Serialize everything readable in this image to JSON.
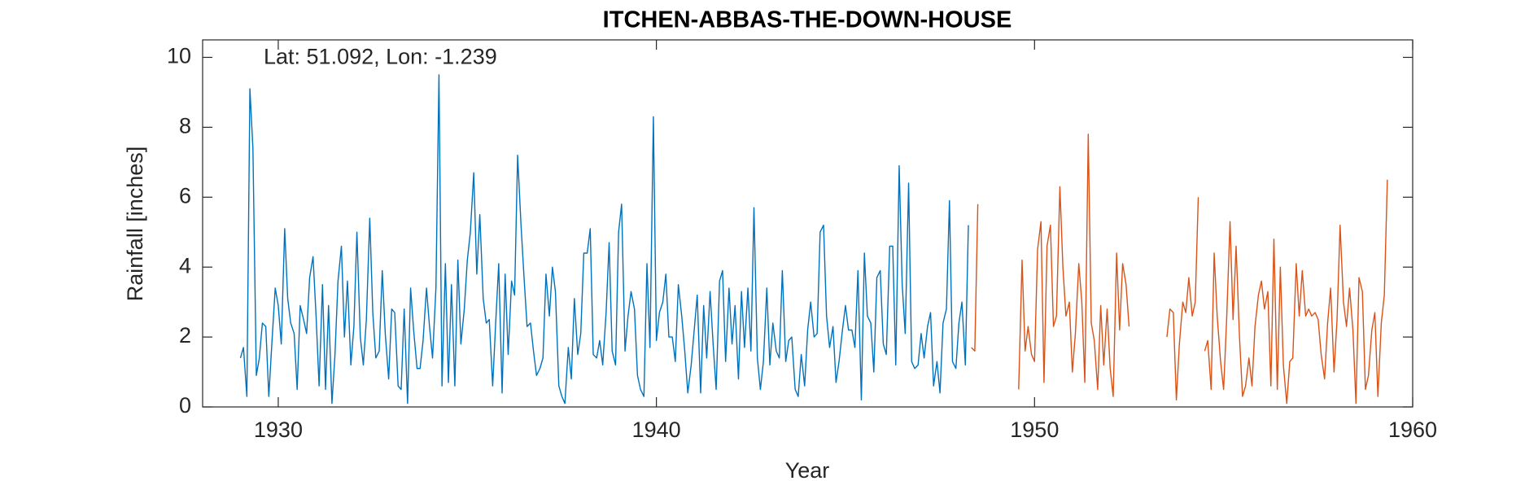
{
  "chart_data": {
    "type": "line",
    "title": "ITCHEN-ABBAS-THE-DOWN-HOUSE",
    "annotation": "Lat: 51.092, Lon: -1.239",
    "xlabel": "Year",
    "ylabel": "Rainfall [inches]",
    "xlim": [
      1928,
      1960
    ],
    "ylim": [
      0,
      10.5
    ],
    "xticks": [
      1930,
      1940,
      1950,
      1960
    ],
    "yticks": [
      0,
      2,
      4,
      6,
      8,
      10
    ],
    "grid": false,
    "series": [
      {
        "color": "#0072bd",
        "x": [
          1929.0,
          1929.08,
          1929.17,
          1929.25,
          1929.33,
          1929.42,
          1929.5,
          1929.58,
          1929.67,
          1929.75,
          1929.83,
          1929.92,
          1930.0,
          1930.08,
          1930.17,
          1930.25,
          1930.33,
          1930.42,
          1930.5,
          1930.58,
          1930.67,
          1930.75,
          1930.83,
          1930.92,
          1931.0,
          1931.08,
          1931.17,
          1931.25,
          1931.33,
          1931.42,
          1931.5,
          1931.58,
          1931.67,
          1931.75,
          1931.83,
          1931.92,
          1932.0,
          1932.08,
          1932.17,
          1932.25,
          1932.33,
          1932.42,
          1932.5,
          1932.58,
          1932.67,
          1932.75,
          1932.83,
          1932.92,
          1933.0,
          1933.08,
          1933.17,
          1933.25,
          1933.33,
          1933.42,
          1933.5,
          1933.58,
          1933.67,
          1933.75,
          1933.83,
          1933.92,
          1934.0,
          1934.08,
          1934.17,
          1934.25,
          1934.33,
          1934.42,
          1934.5,
          1934.58,
          1934.67,
          1934.75,
          1934.83,
          1934.92,
          1935.0,
          1935.08,
          1935.17,
          1935.25,
          1935.33,
          1935.42,
          1935.5,
          1935.58,
          1935.67,
          1935.75,
          1935.83,
          1935.92,
          1936.0,
          1936.08,
          1936.17,
          1936.25,
          1936.33,
          1936.42,
          1936.5,
          1936.58,
          1936.67,
          1936.75,
          1936.83,
          1936.92,
          1937.0,
          1937.08,
          1937.17,
          1937.25,
          1937.33,
          1937.42,
          1937.5,
          1937.58,
          1937.67,
          1937.75,
          1937.83,
          1937.92,
          1938.0,
          1938.08,
          1938.17,
          1938.25,
          1938.33,
          1938.42,
          1938.5,
          1938.58,
          1938.67,
          1938.75,
          1938.83,
          1938.92,
          1939.0,
          1939.08,
          1939.17,
          1939.25,
          1939.33,
          1939.42,
          1939.5,
          1939.58,
          1939.67,
          1939.75,
          1939.83,
          1939.92,
          1940.0,
          1940.08,
          1940.17,
          1940.25,
          1940.33,
          1940.42,
          1940.5,
          1940.58,
          1940.67,
          1940.75,
          1940.83,
          1940.92,
          1941.0,
          1941.08,
          1941.17,
          1941.25,
          1941.33,
          1941.42,
          1941.5,
          1941.58,
          1941.67,
          1941.75,
          1941.83,
          1941.92,
          1942.0,
          1942.08,
          1942.17,
          1942.25,
          1942.33,
          1942.42,
          1942.5,
          1942.58,
          1942.67,
          1942.75,
          1942.83,
          1942.92,
          1943.0,
          1943.08,
          1943.17,
          1943.25,
          1943.33,
          1943.42,
          1943.5,
          1943.58,
          1943.67,
          1943.75,
          1943.83,
          1943.92,
          1944.0,
          1944.08,
          1944.17,
          1944.25,
          1944.33,
          1944.42,
          1944.5,
          1944.58,
          1944.67,
          1944.75,
          1944.83,
          1944.92,
          1945.0,
          1945.08,
          1945.17,
          1945.25,
          1945.33,
          1945.42,
          1945.5,
          1945.58,
          1945.67,
          1945.75,
          1945.83,
          1945.92,
          1946.0,
          1946.08,
          1946.17,
          1946.25,
          1946.33,
          1946.42,
          1946.5,
          1946.58,
          1946.67,
          1946.75,
          1946.83,
          1946.92,
          1947.0,
          1947.08,
          1947.17,
          1947.25,
          1947.33,
          1947.42,
          1947.5,
          1947.58,
          1947.67,
          1947.75,
          1947.83,
          1947.92,
          1948.0,
          1948.08,
          1948.17,
          1948.25
        ],
        "values": [
          1.4,
          1.7,
          0.3,
          9.1,
          7.4,
          0.9,
          1.4,
          2.4,
          2.3,
          0.3,
          1.8,
          3.4,
          2.9,
          1.8,
          5.1,
          3.1,
          2.4,
          2.1,
          0.5,
          2.9,
          2.5,
          2.1,
          3.7,
          4.3,
          2.6,
          0.6,
          3.5,
          0.5,
          2.9,
          0.1,
          1.5,
          3.6,
          4.6,
          2.0,
          3.6,
          1.2,
          2.3,
          5.0,
          2.0,
          1.2,
          2.5,
          5.4,
          2.7,
          1.4,
          1.6,
          3.9,
          2.1,
          0.8,
          2.8,
          2.7,
          0.6,
          0.5,
          2.8,
          0.1,
          3.4,
          2.2,
          1.1,
          1.1,
          1.9,
          3.4,
          2.3,
          1.4,
          3.4,
          9.5,
          0.6,
          4.1,
          0.7,
          3.5,
          0.6,
          4.2,
          1.8,
          2.8,
          4.2,
          5.0,
          6.7,
          3.8,
          5.5,
          3.1,
          2.4,
          2.5,
          0.6,
          2.4,
          4.1,
          0.4,
          3.8,
          1.5,
          3.6,
          3.2,
          7.2,
          5.2,
          3.7,
          2.3,
          2.4,
          1.6,
          0.9,
          1.1,
          1.4,
          3.8,
          2.6,
          4.0,
          3.3,
          0.6,
          0.3,
          0.1,
          1.7,
          0.8,
          3.1,
          1.5,
          2.1,
          4.4,
          4.4,
          5.1,
          1.5,
          1.4,
          1.9,
          1.2,
          2.7,
          4.7,
          1.6,
          1.2,
          5.0,
          5.8,
          1.6,
          2.6,
          3.3,
          2.8,
          0.9,
          0.5,
          0.3,
          4.1,
          1.7,
          8.3,
          1.9,
          2.7,
          3.0,
          3.8,
          2.0,
          2.0,
          1.3,
          3.5,
          2.6,
          1.6,
          0.4,
          1.2,
          2.2,
          3.2,
          0.4,
          2.9,
          1.4,
          3.3,
          1.8,
          0.5,
          3.6,
          3.9,
          1.3,
          3.4,
          1.8,
          2.9,
          0.8,
          3.3,
          1.7,
          3.4,
          1.6,
          5.7,
          1.4,
          0.5,
          1.3,
          3.4,
          1.2,
          2.4,
          1.6,
          1.4,
          3.9,
          1.3,
          1.9,
          2.0,
          0.5,
          0.3,
          1.5,
          0.6,
          2.2,
          3.0,
          2.0,
          2.1,
          5.0,
          5.2,
          2.6,
          1.7,
          2.3,
          0.7,
          1.3,
          2.2,
          2.9,
          2.2,
          2.2,
          1.7,
          3.9,
          0.2,
          4.4,
          2.6,
          2.4,
          1.0,
          3.7,
          3.9,
          1.8,
          1.5,
          4.6,
          4.6,
          1.2,
          6.9,
          3.5,
          2.1,
          6.4,
          1.3,
          1.1,
          1.2,
          2.1,
          1.4,
          2.3,
          2.7,
          0.6,
          1.3,
          0.4,
          2.4,
          2.8,
          5.9,
          1.3,
          1.1,
          2.4,
          3.0,
          1.2,
          5.2
        ]
      },
      {
        "color": "#d95319",
        "x": [
          1948.33,
          1948.42,
          1948.5,
          1949.0,
          1949.58,
          1949.67,
          1949.75,
          1949.83,
          1949.92,
          1950.0,
          1950.08,
          1950.17,
          1950.25,
          1950.33,
          1950.42,
          1950.5,
          1950.58,
          1950.67,
          1950.75,
          1950.83,
          1950.92,
          1951.0,
          1951.08,
          1951.17,
          1951.25,
          1951.33,
          1951.42,
          1951.5,
          1951.58,
          1951.67,
          1951.75,
          1951.83,
          1951.92,
          1952.0,
          1952.08,
          1952.17,
          1952.25,
          1952.33,
          1952.42,
          1952.5,
          1953.0,
          1953.5,
          1953.58,
          1953.67,
          1953.75,
          1953.83,
          1953.92,
          1954.0,
          1954.08,
          1954.17,
          1954.25,
          1954.33,
          1954.42,
          1954.5,
          1954.58,
          1954.67,
          1954.75,
          1954.83,
          1954.92,
          1955.0,
          1955.08,
          1955.17,
          1955.25,
          1955.33,
          1955.42,
          1955.5,
          1955.58,
          1955.67,
          1955.75,
          1955.83,
          1955.92,
          1956.0,
          1956.08,
          1956.17,
          1956.25,
          1956.33,
          1956.42,
          1956.5,
          1956.58,
          1956.67,
          1956.75,
          1956.83,
          1956.92,
          1957.0,
          1957.08,
          1957.17,
          1957.25,
          1957.33,
          1957.42,
          1957.5,
          1957.58,
          1957.67,
          1957.75,
          1957.83,
          1957.92,
          1958.0,
          1958.08,
          1958.17,
          1958.25,
          1958.33,
          1958.42,
          1958.5,
          1958.58,
          1958.67,
          1958.75,
          1958.83,
          1958.92,
          1959.0,
          1959.08,
          1959.17,
          1959.25,
          1959.33
        ],
        "values": [
          1.7,
          1.6,
          5.8,
          null,
          0.5,
          4.2,
          1.6,
          2.3,
          1.5,
          1.3,
          4.5,
          5.3,
          0.7,
          4.6,
          5.2,
          2.3,
          2.6,
          6.3,
          4.0,
          2.6,
          3.0,
          1.0,
          2.1,
          4.1,
          3.0,
          0.7,
          7.8,
          2.4,
          1.9,
          0.5,
          2.9,
          1.2,
          2.8,
          1.1,
          0.3,
          4.4,
          2.2,
          4.1,
          3.5,
          2.3,
          null,
          2.0,
          2.8,
          2.7,
          0.2,
          1.8,
          3.0,
          2.7,
          3.7,
          2.6,
          3.0,
          6.0,
          null,
          1.6,
          1.9,
          0.5,
          4.4,
          2.6,
          1.3,
          0.5,
          2.5,
          5.3,
          2.5,
          4.6,
          2.0,
          0.3,
          0.6,
          1.4,
          0.6,
          2.3,
          3.2,
          3.6,
          2.8,
          3.3,
          0.6,
          4.8,
          0.5,
          4.0,
          1.2,
          0.1,
          1.3,
          1.4,
          4.1,
          2.6,
          3.9,
          2.6,
          2.8,
          2.6,
          2.7,
          2.5,
          1.5,
          0.8,
          2.4,
          3.4,
          1.0,
          2.5,
          5.2,
          3.0,
          2.3,
          3.4,
          2.2,
          0.1,
          3.7,
          3.3,
          0.5,
          0.9,
          2.2,
          2.7,
          0.3,
          2.4,
          3.2,
          6.5
        ]
      }
    ]
  }
}
